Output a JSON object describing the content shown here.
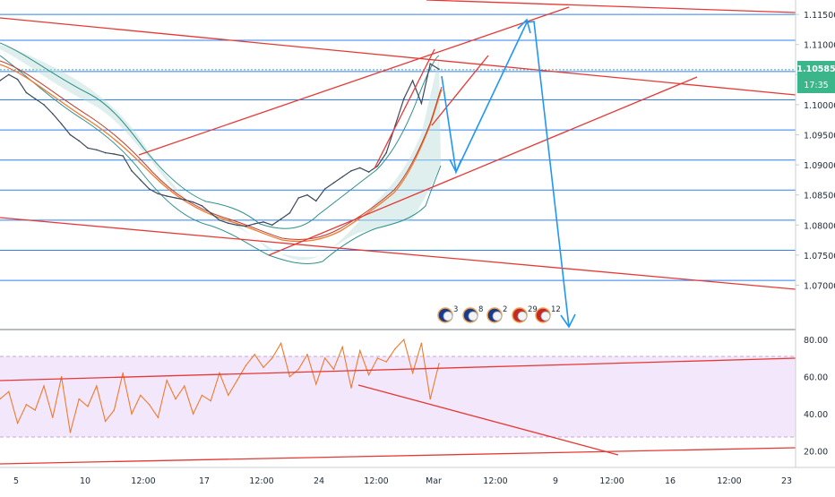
{
  "chart_data": [
    {
      "type": "line",
      "title": "",
      "price_axis_labels": [
        "1.11500",
        "1.11000",
        "1.10500",
        "1.10000",
        "1.09500",
        "1.09000",
        "1.08500",
        "1.08000",
        "1.07500",
        "1.07000"
      ],
      "y_range": [
        1.0668,
        1.1162
      ],
      "last_price_badge": {
        "price": "1.10585",
        "countdown": "17:35"
      },
      "horizontal_levels": [
        1.115,
        1.1107,
        1.1058,
        1.1055,
        1.1008,
        1.0958,
        1.0908,
        1.0858,
        1.0808,
        1.0758,
        1.0708
      ],
      "grid": true,
      "series": [
        {
          "values": [
            1.104,
            1.105,
            1.1042,
            1.102,
            1.101,
            1.1,
            1.0985,
            1.0968,
            1.095,
            1.094,
            1.0928,
            1.0925,
            1.092,
            1.0918,
            1.0915,
            1.089,
            1.0875,
            1.086,
            1.0852,
            1.0848,
            1.0845,
            1.0842,
            1.0838,
            1.0832,
            1.082,
            1.0808,
            1.0803,
            1.08,
            1.0798,
            1.0802,
            1.0805,
            1.08,
            1.081,
            1.082,
            1.0845,
            1.085,
            1.084,
            1.086,
            1.087,
            1.088,
            1.089,
            1.0895,
            1.0888,
            1.0898,
            1.092,
            1.0965,
            1.101,
            1.104,
            1.1002,
            1.1068,
            1.1059
          ]
        }
      ],
      "calendar_events": [
        {
          "flag": "EU",
          "count": "3"
        },
        {
          "flag": "EU",
          "count": "8"
        },
        {
          "flag": "EU",
          "count": "2"
        },
        {
          "flag": "US",
          "count": "29"
        },
        {
          "flag": "US",
          "count": "12"
        }
      ]
    },
    {
      "type": "line",
      "title": "",
      "y_axis_labels": [
        "80.00",
        "60.00",
        "40.00",
        "20.00"
      ],
      "y_range": [
        16,
        82
      ],
      "band": [
        30,
        70
      ],
      "grid": true,
      "series": [
        {
          "values": [
            48,
            52,
            35,
            45,
            42,
            55,
            38,
            60,
            30,
            48,
            44,
            55,
            36,
            42,
            62,
            40,
            50,
            45,
            38,
            58,
            48,
            55,
            40,
            50,
            47,
            62,
            50,
            58,
            66,
            72,
            65,
            70,
            78,
            60,
            64,
            72,
            56,
            70,
            64,
            76,
            54,
            74,
            61,
            70,
            68,
            75,
            80,
            62,
            78,
            48,
            67
          ]
        }
      ]
    }
  ],
  "time_axis_labels": [
    "5",
    "10",
    "12:00",
    "17",
    "12:00",
    "24",
    "12:00",
    "Mar",
    "12:00",
    "9",
    "12:00",
    "16",
    "12:00",
    "23"
  ]
}
